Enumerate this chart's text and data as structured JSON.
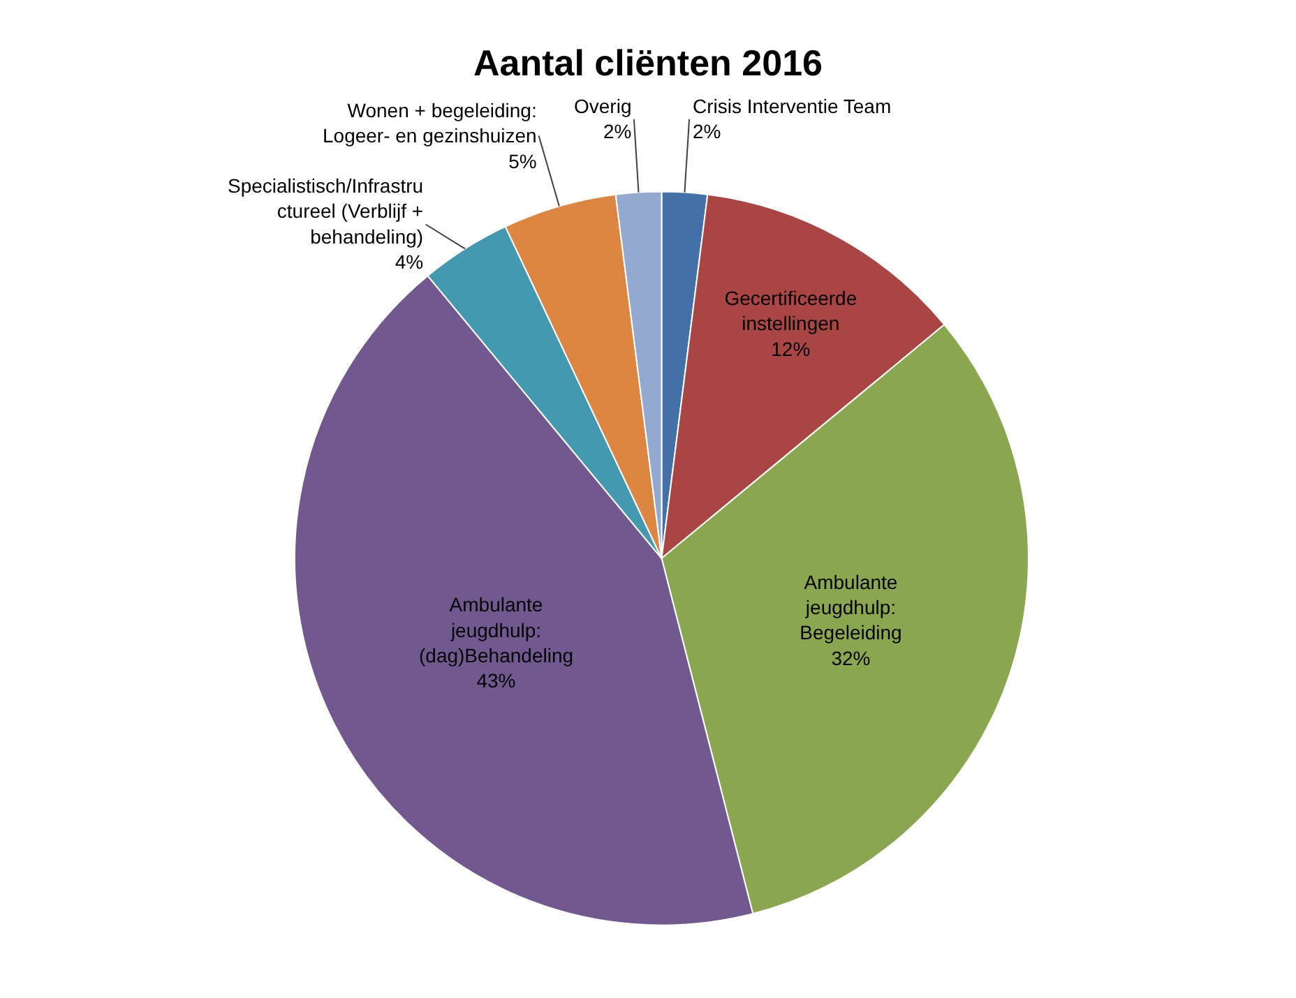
{
  "chart_data": {
    "type": "pie",
    "title": "Aantal cliënten 2016",
    "categories": [
      "Crisis Interventie Team",
      "Gecertificeerde instellingen",
      "Ambulante jeugdhulp: Begeleiding",
      "Ambulante jeugdhulp: (dag)Behandeling",
      "Specialistisch/Infrastructureel (Verblijf + behandeling)",
      "Wonen + begeleiding: Logeer- en gezinshuizen",
      "Overig"
    ],
    "values": [
      2,
      12,
      32,
      43,
      4,
      5,
      2
    ],
    "value_labels": [
      "2%",
      "12%",
      "32%",
      "43%",
      "4%",
      "5%",
      "2%"
    ],
    "colors": [
      "#4470a8",
      "#a94543",
      "#8aa74f",
      "#71588f",
      "#4399b0",
      "#dc8641",
      "#93a9d0"
    ],
    "legend": false
  }
}
